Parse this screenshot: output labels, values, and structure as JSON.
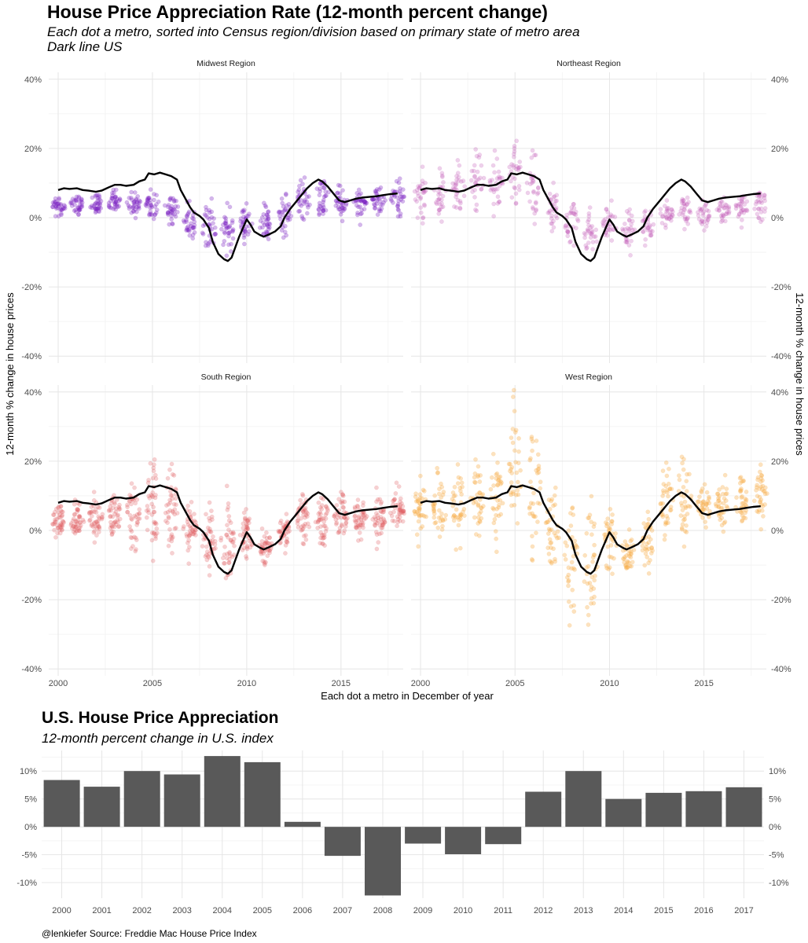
{
  "header": {
    "title": "House Price Appreciation Rate (12-month percent change)",
    "subtitle_line1": "Each dot a metro, sorted into Census region/division based on primary state of metro area",
    "subtitle_line2": "Dark line US"
  },
  "bar_header": {
    "title": "U.S. House Price Appreciation",
    "subtitle": "12-month percent change in U.S. index"
  },
  "caption": "@lenkiefer Source: Freddie Mac House Price Index",
  "chart_data": [
    {
      "type": "scatter",
      "title": "House Price Appreciation Rate (12-month percent change)",
      "xlabel": "Each dot a metro in December of year",
      "ylabel": "12-month % change in house prices",
      "ylim": [
        -42,
        42
      ],
      "xlim": [
        1999.5,
        2018.3
      ],
      "x_ticks": [
        2000,
        2005,
        2010,
        2015
      ],
      "y_ticks": [
        -40,
        -20,
        0,
        20,
        40
      ],
      "y_tick_labels": [
        "-40%",
        "-20%",
        "0%",
        "20%",
        "40%"
      ],
      "grid": true,
      "us_line": {
        "name": "US",
        "color": "#000000",
        "points": [
          [
            2000.0,
            8.0
          ],
          [
            2000.3,
            8.5
          ],
          [
            2000.6,
            8.3
          ],
          [
            2001.0,
            8.5
          ],
          [
            2001.3,
            8.0
          ],
          [
            2001.6,
            7.8
          ],
          [
            2002.0,
            7.5
          ],
          [
            2002.3,
            7.8
          ],
          [
            2002.7,
            8.8
          ],
          [
            2003.0,
            9.5
          ],
          [
            2003.3,
            9.5
          ],
          [
            2003.6,
            9.2
          ],
          [
            2004.0,
            9.5
          ],
          [
            2004.3,
            10.5
          ],
          [
            2004.6,
            11.0
          ],
          [
            2004.8,
            12.8
          ],
          [
            2005.1,
            12.5
          ],
          [
            2005.4,
            13.0
          ],
          [
            2005.7,
            12.5
          ],
          [
            2006.0,
            12.0
          ],
          [
            2006.3,
            11.0
          ],
          [
            2006.5,
            8.0
          ],
          [
            2006.8,
            5.0
          ],
          [
            2007.0,
            3.0
          ],
          [
            2007.2,
            1.5
          ],
          [
            2007.5,
            0.5
          ],
          [
            2007.7,
            -0.5
          ],
          [
            2008.0,
            -3.0
          ],
          [
            2008.2,
            -7.0
          ],
          [
            2008.5,
            -10.5
          ],
          [
            2008.8,
            -12.0
          ],
          [
            2009.0,
            -12.5
          ],
          [
            2009.2,
            -11.5
          ],
          [
            2009.4,
            -8.5
          ],
          [
            2009.6,
            -5.5
          ],
          [
            2009.8,
            -3.0
          ],
          [
            2010.0,
            -0.5
          ],
          [
            2010.2,
            -2.0
          ],
          [
            2010.4,
            -4.0
          ],
          [
            2010.7,
            -5.0
          ],
          [
            2010.9,
            -5.5
          ],
          [
            2011.2,
            -4.8
          ],
          [
            2011.5,
            -4.0
          ],
          [
            2011.8,
            -2.5
          ],
          [
            2012.0,
            0.0
          ],
          [
            2012.3,
            2.5
          ],
          [
            2012.6,
            4.5
          ],
          [
            2012.9,
            6.5
          ],
          [
            2013.2,
            8.5
          ],
          [
            2013.5,
            10.0
          ],
          [
            2013.8,
            11.0
          ],
          [
            2014.0,
            10.5
          ],
          [
            2014.3,
            9.0
          ],
          [
            2014.6,
            7.0
          ],
          [
            2014.9,
            5.0
          ],
          [
            2015.2,
            4.5
          ],
          [
            2015.5,
            5.0
          ],
          [
            2015.8,
            5.5
          ],
          [
            2016.1,
            5.8
          ],
          [
            2016.5,
            6.0
          ],
          [
            2016.9,
            6.2
          ],
          [
            2017.2,
            6.5
          ],
          [
            2017.6,
            6.8
          ],
          [
            2018.0,
            7.0
          ]
        ]
      },
      "panels": [
        {
          "name": "Midwest Region",
          "color": "#7a1fc2",
          "dot_alpha": 0.32,
          "groups": [
            {
              "x": 2000,
              "median": 3,
              "spread": 1.6,
              "n": 34
            },
            {
              "x": 2001,
              "median": 4,
              "spread": 1.6,
              "n": 34
            },
            {
              "x": 2002,
              "median": 4,
              "spread": 1.6,
              "n": 34
            },
            {
              "x": 2003,
              "median": 4,
              "spread": 1.7,
              "n": 34
            },
            {
              "x": 2004,
              "median": 4,
              "spread": 1.8,
              "n": 34
            },
            {
              "x": 2005,
              "median": 4,
              "spread": 2.2,
              "n": 34
            },
            {
              "x": 2006,
              "median": 3,
              "spread": 2.5,
              "n": 34
            },
            {
              "x": 2007,
              "median": -1,
              "spread": 3.0,
              "n": 34
            },
            {
              "x": 2008,
              "median": -3,
              "spread": 4.0,
              "n": 34
            },
            {
              "x": 2009,
              "median": -4,
              "spread": 3.6,
              "n": 34
            },
            {
              "x": 2010,
              "median": -1,
              "spread": 2.8,
              "n": 34
            },
            {
              "x": 2011,
              "median": -2,
              "spread": 2.5,
              "n": 34
            },
            {
              "x": 2012,
              "median": 1,
              "spread": 3.0,
              "n": 34
            },
            {
              "x": 2013,
              "median": 5,
              "spread": 3.3,
              "n": 34
            },
            {
              "x": 2014,
              "median": 6,
              "spread": 3.0,
              "n": 34
            },
            {
              "x": 2015,
              "median": 5,
              "spread": 2.0,
              "n": 34
            },
            {
              "x": 2016,
              "median": 4,
              "spread": 2.0,
              "n": 34
            },
            {
              "x": 2017,
              "median": 5,
              "spread": 2.0,
              "n": 34
            },
            {
              "x": 2018,
              "median": 6,
              "spread": 2.8,
              "n": 34
            }
          ]
        },
        {
          "name": "Northeast Region",
          "color": "#c25ab8",
          "dot_alpha": 0.28,
          "groups": [
            {
              "x": 2000,
              "median": 7,
              "spread": 3.8,
              "n": 30
            },
            {
              "x": 2001,
              "median": 7,
              "spread": 3.5,
              "n": 30
            },
            {
              "x": 2002,
              "median": 8,
              "spread": 3.8,
              "n": 30
            },
            {
              "x": 2003,
              "median": 10,
              "spread": 4.2,
              "n": 30
            },
            {
              "x": 2004,
              "median": 10,
              "spread": 4.2,
              "n": 30
            },
            {
              "x": 2005,
              "median": 12,
              "spread": 4.0,
              "n": 30
            },
            {
              "x": 2006,
              "median": 9,
              "spread": 4.2,
              "n": 30
            },
            {
              "x": 2007,
              "median": 3,
              "spread": 3.0,
              "n": 30
            },
            {
              "x": 2008,
              "median": -2,
              "spread": 3.2,
              "n": 30
            },
            {
              "x": 2009,
              "median": -5,
              "spread": 3.6,
              "n": 30
            },
            {
              "x": 2010,
              "median": -2,
              "spread": 3.0,
              "n": 30
            },
            {
              "x": 2011,
              "median": -3,
              "spread": 2.6,
              "n": 30
            },
            {
              "x": 2012,
              "median": -2,
              "spread": 2.6,
              "n": 30
            },
            {
              "x": 2013,
              "median": 1,
              "spread": 2.2,
              "n": 30
            },
            {
              "x": 2014,
              "median": 2,
              "spread": 2.0,
              "n": 30
            },
            {
              "x": 2015,
              "median": 1,
              "spread": 1.8,
              "n": 30
            },
            {
              "x": 2016,
              "median": 2,
              "spread": 1.8,
              "n": 30
            },
            {
              "x": 2017,
              "median": 3,
              "spread": 2.0,
              "n": 30
            },
            {
              "x": 2018,
              "median": 4,
              "spread": 2.5,
              "n": 30
            }
          ]
        },
        {
          "name": "South Region",
          "color": "#e0585f",
          "dot_alpha": 0.28,
          "groups": [
            {
              "x": 2000,
              "median": 3,
              "spread": 2.2,
              "n": 44
            },
            {
              "x": 2001,
              "median": 3,
              "spread": 2.4,
              "n": 44
            },
            {
              "x": 2002,
              "median": 4,
              "spread": 2.8,
              "n": 44
            },
            {
              "x": 2003,
              "median": 4,
              "spread": 3.5,
              "n": 44
            },
            {
              "x": 2004,
              "median": 5,
              "spread": 4.5,
              "n": 44
            },
            {
              "x": 2005,
              "median": 6,
              "spread": 6.5,
              "n": 44
            },
            {
              "x": 2006,
              "median": 6,
              "spread": 6.5,
              "n": 44
            },
            {
              "x": 2007,
              "median": 1,
              "spread": 3.5,
              "n": 44
            },
            {
              "x": 2008,
              "median": -3,
              "spread": 4.5,
              "n": 44
            },
            {
              "x": 2009,
              "median": -4,
              "spread": 5.5,
              "n": 44
            },
            {
              "x": 2010,
              "median": -2,
              "spread": 3.2,
              "n": 44
            },
            {
              "x": 2011,
              "median": -4,
              "spread": 3.0,
              "n": 44
            },
            {
              "x": 2012,
              "median": -1,
              "spread": 2.6,
              "n": 44
            },
            {
              "x": 2013,
              "median": 3,
              "spread": 3.5,
              "n": 44
            },
            {
              "x": 2014,
              "median": 4,
              "spread": 3.8,
              "n": 44
            },
            {
              "x": 2015,
              "median": 4,
              "spread": 3.0,
              "n": 44
            },
            {
              "x": 2016,
              "median": 4,
              "spread": 3.0,
              "n": 44
            },
            {
              "x": 2017,
              "median": 4,
              "spread": 3.2,
              "n": 44
            },
            {
              "x": 2018,
              "median": 5,
              "spread": 3.5,
              "n": 44
            }
          ]
        },
        {
          "name": "West Region",
          "color": "#f6ad48",
          "dot_alpha": 0.35,
          "groups": [
            {
              "x": 2000,
              "median": 6,
              "spread": 5.0,
              "n": 36
            },
            {
              "x": 2001,
              "median": 6,
              "spread": 4.5,
              "n": 36
            },
            {
              "x": 2002,
              "median": 7,
              "spread": 5.0,
              "n": 36
            },
            {
              "x": 2003,
              "median": 9,
              "spread": 5.0,
              "n": 36
            },
            {
              "x": 2004,
              "median": 10,
              "spread": 6.0,
              "n": 36
            },
            {
              "x": 2005,
              "median": 18,
              "spread": 8.5,
              "n": 36
            },
            {
              "x": 2006,
              "median": 13,
              "spread": 8.0,
              "n": 36
            },
            {
              "x": 2007,
              "median": 1,
              "spread": 6.0,
              "n": 36
            },
            {
              "x": 2008,
              "median": -7,
              "spread": 8.5,
              "n": 36
            },
            {
              "x": 2009,
              "median": -10,
              "spread": 9.0,
              "n": 36
            },
            {
              "x": 2010,
              "median": -4,
              "spread": 5.0,
              "n": 36
            },
            {
              "x": 2011,
              "median": -6,
              "spread": 3.0,
              "n": 36
            },
            {
              "x": 2012,
              "median": -3,
              "spread": 3.5,
              "n": 36
            },
            {
              "x": 2013,
              "median": 9,
              "spread": 5.0,
              "n": 36
            },
            {
              "x": 2014,
              "median": 12,
              "spread": 7.0,
              "n": 36
            },
            {
              "x": 2015,
              "median": 7,
              "spread": 3.2,
              "n": 36
            },
            {
              "x": 2016,
              "median": 8,
              "spread": 3.2,
              "n": 36
            },
            {
              "x": 2017,
              "median": 8,
              "spread": 3.2,
              "n": 36
            },
            {
              "x": 2018,
              "median": 10,
              "spread": 3.5,
              "n": 36
            }
          ]
        }
      ]
    },
    {
      "type": "bar",
      "title": "U.S. House Price Appreciation",
      "subtitle": "12-month percent change in U.S. index",
      "categories": [
        "2000",
        "2001",
        "2002",
        "2003",
        "2004",
        "2005",
        "2006",
        "2007",
        "2008",
        "2009",
        "2010",
        "2011",
        "2012",
        "2013",
        "2014",
        "2015",
        "2016",
        "2017"
      ],
      "values": [
        8.4,
        7.2,
        10.0,
        9.4,
        12.7,
        11.6,
        0.9,
        -5.2,
        -12.3,
        -3.0,
        -4.9,
        -3.1,
        6.3,
        10.0,
        5.0,
        6.1,
        6.4,
        7.1
      ],
      "ylim": [
        -12.8,
        13.7
      ],
      "y_ticks": [
        -10,
        -5,
        0,
        5,
        10
      ],
      "y_tick_labels": [
        "-10%",
        "-5%",
        "0%",
        "5%",
        "10%"
      ],
      "bar_color": "#595959",
      "grid": true
    }
  ]
}
